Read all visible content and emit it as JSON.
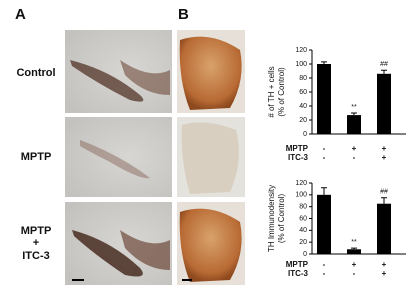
{
  "panels": {
    "a": "A",
    "b": "B"
  },
  "rows": [
    "Control",
    "MPTP",
    "MPTP",
    "+",
    "ITC-3"
  ],
  "chart_data": [
    {
      "type": "bar",
      "ylabel": [
        "# of TH + cells",
        "(% of Control)"
      ],
      "values": [
        100,
        27,
        86
      ],
      "errors": [
        3,
        3,
        5
      ],
      "color": "#000000",
      "ylim": [
        0,
        120
      ],
      "yticks": [
        0,
        20,
        40,
        60,
        80,
        100,
        120
      ],
      "annotations": [
        {
          "index": 1,
          "text": "**"
        },
        {
          "index": 2,
          "text": "##"
        }
      ],
      "conditions": [
        {
          "name": "MPTP",
          "signs": [
            "-",
            "+",
            "+"
          ]
        },
        {
          "name": "ITC-3",
          "signs": [
            "-",
            "-",
            "+"
          ]
        }
      ]
    },
    {
      "type": "bar",
      "ylabel": [
        "TH Immunodensity",
        "(% of Control)"
      ],
      "values": [
        100,
        8,
        85
      ],
      "errors": [
        12,
        2,
        10
      ],
      "color": "#000000",
      "ylim": [
        0,
        120
      ],
      "yticks": [
        0,
        20,
        40,
        60,
        80,
        100,
        120
      ],
      "annotations": [
        {
          "index": 1,
          "text": "**"
        },
        {
          "index": 2,
          "text": "##"
        }
      ],
      "conditions": [
        {
          "name": "MPTP",
          "signs": [
            "-",
            "+",
            "+"
          ]
        },
        {
          "name": "ITC-3",
          "signs": [
            "-",
            "-",
            "+"
          ]
        }
      ]
    }
  ]
}
